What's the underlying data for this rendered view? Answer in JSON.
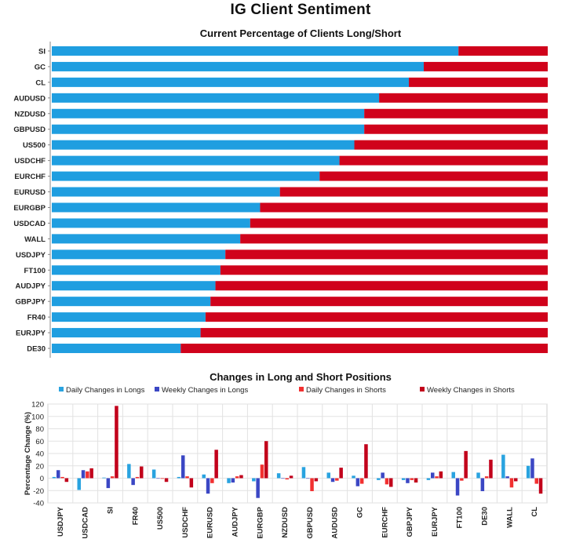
{
  "title": "IG Client Sentiment",
  "chart_data": [
    {
      "type": "bar",
      "orientation": "horizontal",
      "stacked": true,
      "title": "Current Percentage of Clients Long/Short",
      "categories": [
        "SI",
        "GC",
        "CL",
        "AUDUSD",
        "NZDUSD",
        "GBPUSD",
        "US500",
        "USDCHF",
        "EURCHF",
        "EURUSD",
        "EURGBP",
        "USDCAD",
        "WALL",
        "USDJPY",
        "FT100",
        "AUDJPY",
        "GBPJPY",
        "FR40",
        "EURJPY",
        "DE30"
      ],
      "series": [
        {
          "name": "Long",
          "color": "#1f9ee0",
          "values": [
            82,
            75,
            72,
            66,
            63,
            63,
            61,
            58,
            54,
            46,
            42,
            40,
            38,
            35,
            34,
            33,
            32,
            31,
            30,
            26
          ]
        },
        {
          "name": "Short",
          "color": "#d0021b",
          "values": [
            18,
            25,
            28,
            34,
            37,
            37,
            39,
            42,
            46,
            54,
            58,
            60,
            62,
            65,
            66,
            67,
            68,
            69,
            70,
            74
          ]
        }
      ],
      "xlim": [
        0,
        100
      ]
    },
    {
      "type": "bar",
      "title": "Changes in Long and Short Positions",
      "ylabel": "Percentage Change (%)",
      "ylim": [
        -40,
        120
      ],
      "yticks": [
        "120",
        "100",
        "80",
        "60",
        "40",
        "20",
        "0",
        "-20",
        "-40"
      ],
      "categories": [
        "USDJPY",
        "USDCAD",
        "SI",
        "FR40",
        "US500",
        "USDCHF",
        "EURUSD",
        "AUDJPY",
        "EURGBP",
        "NZDUSD",
        "GBPUSD",
        "AUDUSD",
        "GC",
        "EURCHF",
        "GBPJPY",
        "EURJPY",
        "FT100",
        "DE30",
        "WALL",
        "CL"
      ],
      "series": [
        {
          "name": "Daily Changes in Longs",
          "color": "#29a3e0",
          "values": [
            2,
            -19,
            1,
            23,
            14,
            2,
            6,
            -8,
            -5,
            8,
            18,
            9,
            4,
            -3,
            -3,
            -3,
            10,
            9,
            38,
            20
          ]
        },
        {
          "name": "Weekly Changes in Longs",
          "color": "#3b47c4",
          "values": [
            13,
            13,
            -16,
            -11,
            0,
            37,
            -25,
            -7,
            -32,
            0,
            0,
            -6,
            -13,
            9,
            -8,
            9,
            -28,
            -21,
            3,
            32
          ]
        },
        {
          "name": "Daily Changes in Shorts",
          "color": "#f23030",
          "values": [
            2,
            11,
            3,
            2,
            -1,
            3,
            -8,
            3,
            22,
            -2,
            -21,
            -4,
            -9,
            -10,
            -3,
            3,
            -4,
            3,
            -15,
            -9
          ]
        },
        {
          "name": "Weekly Changes in Shorts",
          "color": "#c2001b",
          "values": [
            -6,
            16,
            117,
            19,
            -6,
            -15,
            46,
            5,
            60,
            4,
            -5,
            17,
            55,
            -14,
            -7,
            11,
            44,
            30,
            -5,
            -25
          ]
        }
      ]
    }
  ]
}
